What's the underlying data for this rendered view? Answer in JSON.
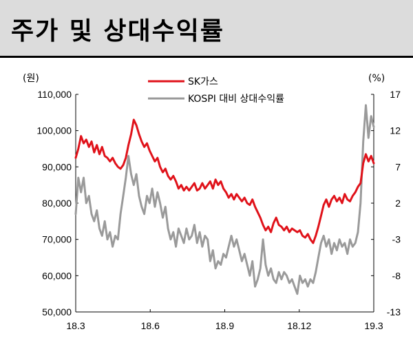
{
  "title": "주가 및 상대수익률",
  "chart_data": {
    "type": "line",
    "left_unit": "(원)",
    "right_unit": "(%)",
    "x_ticks": [
      "18.3",
      "18.6",
      "18.9",
      "18.12",
      "19.3"
    ],
    "y_left": {
      "ticks": [
        "110,000",
        "100,000",
        "90,000",
        "80,000",
        "70,000",
        "60,000",
        "50,000"
      ],
      "min": 50000,
      "max": 110000
    },
    "y_right": {
      "ticks": [
        "17",
        "12",
        "7",
        "2",
        "-3",
        "-8",
        "-13"
      ],
      "min": -13,
      "max": 17
    },
    "grid": false,
    "legend_position": "top",
    "series": [
      {
        "name": "SK가스",
        "axis": "left",
        "color": "#e0121a",
        "points": [
          [
            0,
            92500
          ],
          [
            2,
            95000
          ],
          [
            4,
            98500
          ],
          [
            6,
            96500
          ],
          [
            8,
            97500
          ],
          [
            10,
            95500
          ],
          [
            12,
            97000
          ],
          [
            14,
            94000
          ],
          [
            16,
            96000
          ],
          [
            18,
            93500
          ],
          [
            20,
            95500
          ],
          [
            22,
            93000
          ],
          [
            24,
            92500
          ],
          [
            26,
            91500
          ],
          [
            28,
            92500
          ],
          [
            30,
            91000
          ],
          [
            32,
            90000
          ],
          [
            34,
            89500
          ],
          [
            36,
            90500
          ],
          [
            38,
            92500
          ],
          [
            40,
            96000
          ],
          [
            42,
            99000
          ],
          [
            44,
            103000
          ],
          [
            46,
            101500
          ],
          [
            48,
            99000
          ],
          [
            50,
            97000
          ],
          [
            52,
            95500
          ],
          [
            54,
            96500
          ],
          [
            56,
            94500
          ],
          [
            58,
            93000
          ],
          [
            60,
            91500
          ],
          [
            62,
            92500
          ],
          [
            64,
            90000
          ],
          [
            66,
            88500
          ],
          [
            68,
            89500
          ],
          [
            70,
            87500
          ],
          [
            72,
            86500
          ],
          [
            74,
            87500
          ],
          [
            76,
            86000
          ],
          [
            78,
            84000
          ],
          [
            80,
            85000
          ],
          [
            82,
            83500
          ],
          [
            84,
            84500
          ],
          [
            86,
            83500
          ],
          [
            88,
            84500
          ],
          [
            90,
            85500
          ],
          [
            92,
            83500
          ],
          [
            94,
            84000
          ],
          [
            96,
            85500
          ],
          [
            98,
            84000
          ],
          [
            100,
            85000
          ],
          [
            102,
            86000
          ],
          [
            104,
            84000
          ],
          [
            106,
            86500
          ],
          [
            108,
            85000
          ],
          [
            110,
            86000
          ],
          [
            112,
            84000
          ],
          [
            114,
            83000
          ],
          [
            116,
            81500
          ],
          [
            118,
            82500
          ],
          [
            120,
            81000
          ],
          [
            122,
            82500
          ],
          [
            124,
            81500
          ],
          [
            126,
            80500
          ],
          [
            128,
            81500
          ],
          [
            130,
            80000
          ],
          [
            132,
            79500
          ],
          [
            134,
            81000
          ],
          [
            136,
            79000
          ],
          [
            138,
            77500
          ],
          [
            140,
            76000
          ],
          [
            142,
            74000
          ],
          [
            144,
            72500
          ],
          [
            146,
            73500
          ],
          [
            148,
            72000
          ],
          [
            150,
            74500
          ],
          [
            152,
            76000
          ],
          [
            154,
            74000
          ],
          [
            156,
            73500
          ],
          [
            158,
            72500
          ],
          [
            160,
            73500
          ],
          [
            162,
            72000
          ],
          [
            164,
            73000
          ],
          [
            166,
            72500
          ],
          [
            168,
            72000
          ],
          [
            170,
            72500
          ],
          [
            172,
            71000
          ],
          [
            174,
            70500
          ],
          [
            176,
            71500
          ],
          [
            178,
            70000
          ],
          [
            180,
            69000
          ],
          [
            182,
            71000
          ],
          [
            184,
            73500
          ],
          [
            186,
            76500
          ],
          [
            188,
            79500
          ],
          [
            190,
            81000
          ],
          [
            192,
            79000
          ],
          [
            194,
            81000
          ],
          [
            196,
            82000
          ],
          [
            198,
            80500
          ],
          [
            200,
            81500
          ],
          [
            202,
            80000
          ],
          [
            204,
            82500
          ],
          [
            206,
            81000
          ],
          [
            208,
            80500
          ],
          [
            210,
            82000
          ],
          [
            212,
            83000
          ],
          [
            214,
            84500
          ],
          [
            216,
            85500
          ],
          [
            218,
            91000
          ],
          [
            220,
            93500
          ],
          [
            222,
            91500
          ],
          [
            224,
            93000
          ],
          [
            226,
            91000
          ]
        ]
      },
      {
        "name": "KOSPI 대비 상대수익률",
        "axis": "right",
        "color": "#9a9a9a",
        "points": [
          [
            0,
            0.5
          ],
          [
            2,
            5.5
          ],
          [
            4,
            3.5
          ],
          [
            6,
            5.5
          ],
          [
            8,
            2.0
          ],
          [
            10,
            3.0
          ],
          [
            12,
            0.5
          ],
          [
            14,
            -0.5
          ],
          [
            16,
            1.0
          ],
          [
            18,
            -1.5
          ],
          [
            20,
            -2.5
          ],
          [
            22,
            -0.5
          ],
          [
            24,
            -3.0
          ],
          [
            26,
            -2.0
          ],
          [
            28,
            -4.0
          ],
          [
            30,
            -2.5
          ],
          [
            32,
            -3.0
          ],
          [
            34,
            0.5
          ],
          [
            36,
            3.0
          ],
          [
            38,
            5.5
          ],
          [
            40,
            8.5
          ],
          [
            42,
            6.0
          ],
          [
            44,
            4.5
          ],
          [
            46,
            6.0
          ],
          [
            48,
            3.0
          ],
          [
            50,
            1.5
          ],
          [
            52,
            0.5
          ],
          [
            54,
            3.0
          ],
          [
            56,
            2.0
          ],
          [
            58,
            4.0
          ],
          [
            60,
            1.5
          ],
          [
            62,
            3.5
          ],
          [
            64,
            2.0
          ],
          [
            66,
            0.0
          ],
          [
            68,
            1.5
          ],
          [
            70,
            -1.5
          ],
          [
            72,
            -3.0
          ],
          [
            74,
            -2.0
          ],
          [
            76,
            -4.0
          ],
          [
            78,
            -1.5
          ],
          [
            80,
            -2.5
          ],
          [
            82,
            -3.5
          ],
          [
            84,
            -1.5
          ],
          [
            86,
            -3.0
          ],
          [
            88,
            -2.5
          ],
          [
            90,
            -1.0
          ],
          [
            92,
            -3.5
          ],
          [
            94,
            -2.0
          ],
          [
            96,
            -4.0
          ],
          [
            98,
            -2.5
          ],
          [
            100,
            -3.0
          ],
          [
            102,
            -6.0
          ],
          [
            104,
            -4.5
          ],
          [
            106,
            -7.0
          ],
          [
            108,
            -6.0
          ],
          [
            110,
            -6.5
          ],
          [
            112,
            -5.0
          ],
          [
            114,
            -5.5
          ],
          [
            116,
            -4.0
          ],
          [
            118,
            -2.5
          ],
          [
            120,
            -4.0
          ],
          [
            122,
            -3.0
          ],
          [
            124,
            -4.5
          ],
          [
            126,
            -6.0
          ],
          [
            128,
            -5.0
          ],
          [
            130,
            -6.5
          ],
          [
            132,
            -8.0
          ],
          [
            134,
            -6.0
          ],
          [
            136,
            -9.5
          ],
          [
            138,
            -8.5
          ],
          [
            140,
            -7.0
          ],
          [
            142,
            -3.0
          ],
          [
            144,
            -6.5
          ],
          [
            146,
            -8.0
          ],
          [
            148,
            -7.0
          ],
          [
            150,
            -8.5
          ],
          [
            152,
            -9.0
          ],
          [
            154,
            -7.5
          ],
          [
            156,
            -8.5
          ],
          [
            158,
            -7.5
          ],
          [
            160,
            -8.0
          ],
          [
            162,
            -9.0
          ],
          [
            164,
            -8.5
          ],
          [
            166,
            -9.5
          ],
          [
            168,
            -10.5
          ],
          [
            170,
            -8.0
          ],
          [
            172,
            -9.0
          ],
          [
            174,
            -8.5
          ],
          [
            176,
            -9.5
          ],
          [
            178,
            -8.5
          ],
          [
            180,
            -9.0
          ],
          [
            182,
            -7.5
          ],
          [
            184,
            -5.5
          ],
          [
            186,
            -3.5
          ],
          [
            188,
            -2.5
          ],
          [
            190,
            -4.0
          ],
          [
            192,
            -3.0
          ],
          [
            194,
            -5.0
          ],
          [
            196,
            -3.5
          ],
          [
            198,
            -4.5
          ],
          [
            200,
            -3.0
          ],
          [
            202,
            -4.0
          ],
          [
            204,
            -3.5
          ],
          [
            206,
            -5.0
          ],
          [
            208,
            -3.0
          ],
          [
            210,
            -4.0
          ],
          [
            212,
            -3.5
          ],
          [
            214,
            -2.0
          ],
          [
            216,
            2.0
          ],
          [
            218,
            10.5
          ],
          [
            220,
            15.5
          ],
          [
            222,
            11.0
          ],
          [
            224,
            14.0
          ],
          [
            226,
            12.5
          ]
        ]
      }
    ]
  }
}
